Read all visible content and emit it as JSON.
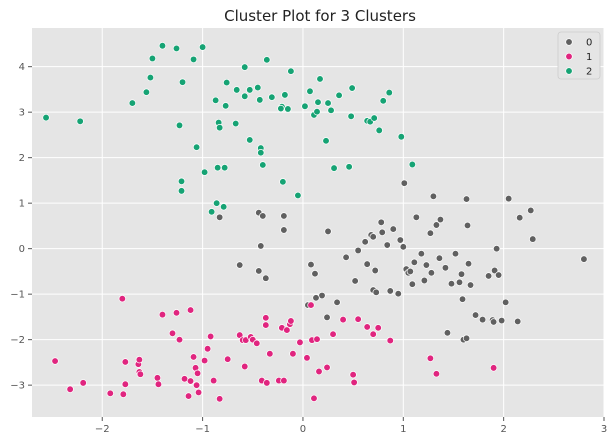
{
  "chart_data": {
    "type": "scatter",
    "title": "Cluster Plot for 3 Clusters",
    "xlabel": "",
    "ylabel": "",
    "xlim": [
      -2.7,
      3.0
    ],
    "ylim": [
      -3.7,
      4.85
    ],
    "xticks": [
      -2,
      -1,
      0,
      1,
      2,
      3
    ],
    "yticks": [
      -3,
      -2,
      -1,
      0,
      1,
      2,
      3,
      4
    ],
    "xtick_labels": [
      "−2",
      "−1",
      "0",
      "1",
      "2",
      "3"
    ],
    "ytick_labels": [
      "−3",
      "−2",
      "−1",
      "0",
      "1",
      "2",
      "3",
      "4"
    ],
    "grid": true,
    "legend": {
      "placement": "top-right"
    },
    "series": [
      {
        "name": "0",
        "color": "#606060",
        "points": [
          [
            -0.83,
            0.69
          ],
          [
            -0.44,
            0.79
          ],
          [
            -0.4,
            0.72
          ],
          [
            -0.19,
            0.72
          ],
          [
            -0.19,
            0.41
          ],
          [
            -0.42,
            0.06
          ],
          [
            -0.63,
            -0.36
          ],
          [
            -0.44,
            -0.49
          ],
          [
            -0.37,
            -0.65
          ],
          [
            0.08,
            -0.35
          ],
          [
            0.12,
            -0.55
          ],
          [
            0.25,
            0.38
          ],
          [
            0.19,
            -1.03
          ],
          [
            0.13,
            -1.08
          ],
          [
            0.05,
            -1.24
          ],
          [
            0.24,
            -1.51
          ],
          [
            0.34,
            -1.18
          ],
          [
            0.43,
            -0.19
          ],
          [
            0.52,
            -0.71
          ],
          [
            0.55,
            -0.04
          ],
          [
            0.62,
            0.15
          ],
          [
            0.64,
            -0.34
          ],
          [
            0.68,
            0.3
          ],
          [
            0.72,
            -0.48
          ],
          [
            0.78,
            0.58
          ],
          [
            0.7,
            0.26
          ],
          [
            0.7,
            -0.91
          ],
          [
            0.73,
            -0.96
          ],
          [
            0.79,
            0.36
          ],
          [
            0.84,
            0.08
          ],
          [
            0.87,
            -0.93
          ],
          [
            0.9,
            0.43
          ],
          [
            0.95,
            -0.99
          ],
          [
            0.97,
            0.19
          ],
          [
            1.0,
            0.04
          ],
          [
            1.01,
            1.44
          ],
          [
            1.03,
            -0.45
          ],
          [
            1.05,
            -0.53
          ],
          [
            1.07,
            -0.5
          ],
          [
            1.09,
            -0.78
          ],
          [
            1.11,
            -0.3
          ],
          [
            1.13,
            0.69
          ],
          [
            1.18,
            -0.11
          ],
          [
            1.21,
            -0.7
          ],
          [
            1.27,
            0.34
          ],
          [
            1.28,
            -0.53
          ],
          [
            1.3,
            1.15
          ],
          [
            1.33,
            0.52
          ],
          [
            1.36,
            -0.21
          ],
          [
            1.37,
            0.64
          ],
          [
            1.42,
            -0.42
          ],
          [
            1.44,
            -1.85
          ],
          [
            1.48,
            -0.77
          ],
          [
            1.52,
            -0.11
          ],
          [
            1.58,
            -0.56
          ],
          [
            1.59,
            -1.11
          ],
          [
            1.6,
            -2.0
          ],
          [
            1.63,
            -1.97
          ],
          [
            1.64,
            0.51
          ],
          [
            1.65,
            -0.33
          ],
          [
            1.67,
            -0.8
          ],
          [
            1.72,
            -1.46
          ],
          [
            1.79,
            -1.56
          ],
          [
            1.85,
            -0.6
          ],
          [
            1.89,
            -1.57
          ],
          [
            1.9,
            -1.61
          ],
          [
            1.91,
            -0.48
          ],
          [
            1.93,
            0.0
          ],
          [
            1.95,
            -0.58
          ],
          [
            1.98,
            -1.58
          ],
          [
            2.02,
            -1.18
          ],
          [
            2.05,
            1.1
          ],
          [
            2.14,
            -1.6
          ],
          [
            2.16,
            0.68
          ],
          [
            2.27,
            0.84
          ],
          [
            2.29,
            0.21
          ],
          [
            2.8,
            -0.23
          ],
          [
            1.63,
            1.09
          ],
          [
            1.23,
            -0.36
          ],
          [
            1.56,
            -0.74
          ]
        ]
      },
      {
        "name": "1",
        "color": "#e0257f",
        "points": [
          [
            -2.47,
            -2.47
          ],
          [
            -2.32,
            -3.09
          ],
          [
            -2.19,
            -2.95
          ],
          [
            -1.92,
            -3.18
          ],
          [
            -1.8,
            -1.1
          ],
          [
            -1.77,
            -2.98
          ],
          [
            -1.77,
            -2.49
          ],
          [
            -1.79,
            -3.2
          ],
          [
            -1.64,
            -2.54
          ],
          [
            -1.63,
            -2.71
          ],
          [
            -1.63,
            -2.44
          ],
          [
            -1.62,
            -2.76
          ],
          [
            -1.45,
            -2.84
          ],
          [
            -1.44,
            -2.98
          ],
          [
            -1.4,
            -1.45
          ],
          [
            -1.3,
            -1.86
          ],
          [
            -1.26,
            -1.41
          ],
          [
            -1.23,
            -2.0
          ],
          [
            -1.18,
            -2.86
          ],
          [
            -1.14,
            -3.24
          ],
          [
            -1.12,
            -2.91
          ],
          [
            -1.12,
            -1.35
          ],
          [
            -1.09,
            -2.38
          ],
          [
            -1.07,
            -2.62
          ],
          [
            -1.06,
            -3.0
          ],
          [
            -1.05,
            -2.74
          ],
          [
            -1.04,
            -3.16
          ],
          [
            -0.98,
            -2.46
          ],
          [
            -0.95,
            -2.2
          ],
          [
            -0.92,
            -1.93
          ],
          [
            -0.89,
            -2.9
          ],
          [
            -0.83,
            -3.3
          ],
          [
            -0.75,
            -2.43
          ],
          [
            -0.63,
            -1.9
          ],
          [
            -0.6,
            -2.01
          ],
          [
            -0.58,
            -2.59
          ],
          [
            -0.57,
            -2.01
          ],
          [
            -0.52,
            -1.94
          ],
          [
            -0.5,
            -2.0
          ],
          [
            -0.46,
            -2.08
          ],
          [
            -0.41,
            -2.9
          ],
          [
            -0.37,
            -1.68
          ],
          [
            -0.37,
            -1.52
          ],
          [
            -0.33,
            -2.31
          ],
          [
            -0.36,
            -2.95
          ],
          [
            -0.24,
            -2.9
          ],
          [
            -0.21,
            -1.74
          ],
          [
            -0.19,
            -2.9
          ],
          [
            -0.16,
            -1.79
          ],
          [
            -0.13,
            -1.66
          ],
          [
            -0.12,
            -1.59
          ],
          [
            -0.1,
            -2.31
          ],
          [
            -0.03,
            -2.06
          ],
          [
            0.04,
            -2.4
          ],
          [
            0.08,
            -1.24
          ],
          [
            0.09,
            -2.01
          ],
          [
            0.11,
            -3.29
          ],
          [
            0.14,
            -1.99
          ],
          [
            0.16,
            -2.7
          ],
          [
            0.24,
            -2.61
          ],
          [
            0.3,
            -1.88
          ],
          [
            0.4,
            -1.56
          ],
          [
            0.5,
            -2.77
          ],
          [
            0.51,
            -2.94
          ],
          [
            0.55,
            -1.55
          ],
          [
            0.64,
            -1.72
          ],
          [
            0.7,
            -1.88
          ],
          [
            0.75,
            -1.74
          ],
          [
            0.87,
            -2.02
          ],
          [
            1.27,
            -2.41
          ],
          [
            1.33,
            -2.75
          ],
          [
            1.9,
            -2.62
          ]
        ]
      },
      {
        "name": "2",
        "color": "#16a374",
        "points": [
          [
            -2.56,
            2.88
          ],
          [
            -2.22,
            2.8
          ],
          [
            -1.7,
            3.2
          ],
          [
            -1.56,
            3.44
          ],
          [
            -1.52,
            3.76
          ],
          [
            -1.5,
            4.18
          ],
          [
            -1.4,
            4.46
          ],
          [
            -1.26,
            4.4
          ],
          [
            -1.23,
            2.71
          ],
          [
            -1.21,
            1.48
          ],
          [
            -1.21,
            1.27
          ],
          [
            -1.2,
            3.66
          ],
          [
            -1.09,
            4.16
          ],
          [
            -1.06,
            2.23
          ],
          [
            -1.0,
            4.43
          ],
          [
            -0.98,
            1.68
          ],
          [
            -0.91,
            0.81
          ],
          [
            -0.86,
            1.0
          ],
          [
            -0.87,
            3.26
          ],
          [
            -0.85,
            1.78
          ],
          [
            -0.84,
            2.77
          ],
          [
            -0.83,
            2.66
          ],
          [
            -0.79,
            0.92
          ],
          [
            -0.78,
            1.78
          ],
          [
            -0.77,
            3.14
          ],
          [
            -0.76,
            3.65
          ],
          [
            -0.67,
            2.75
          ],
          [
            -0.66,
            3.49
          ],
          [
            -0.58,
            3.35
          ],
          [
            -0.58,
            3.99
          ],
          [
            -0.53,
            3.49
          ],
          [
            -0.53,
            2.39
          ],
          [
            -0.45,
            3.54
          ],
          [
            -0.43,
            3.27
          ],
          [
            -0.42,
            2.21
          ],
          [
            -0.42,
            2.11
          ],
          [
            -0.4,
            1.84
          ],
          [
            -0.36,
            4.15
          ],
          [
            -0.31,
            3.33
          ],
          [
            -0.21,
            3.12
          ],
          [
            -0.2,
            1.47
          ],
          [
            -0.18,
            3.38
          ],
          [
            -0.15,
            3.07
          ],
          [
            -0.12,
            3.9
          ],
          [
            -0.05,
            1.17
          ],
          [
            0.02,
            3.13
          ],
          [
            0.07,
            3.46
          ],
          [
            0.11,
            2.94
          ],
          [
            0.14,
            3.01
          ],
          [
            0.15,
            3.22
          ],
          [
            0.17,
            3.73
          ],
          [
            0.23,
            2.37
          ],
          [
            0.25,
            3.2
          ],
          [
            0.31,
            1.77
          ],
          [
            0.36,
            3.37
          ],
          [
            0.46,
            1.8
          ],
          [
            0.48,
            2.91
          ],
          [
            0.49,
            3.53
          ],
          [
            0.64,
            2.81
          ],
          [
            0.67,
            2.79
          ],
          [
            0.71,
            2.87
          ],
          [
            0.76,
            2.6
          ],
          [
            0.8,
            3.25
          ],
          [
            0.86,
            3.43
          ],
          [
            0.98,
            2.46
          ],
          [
            1.09,
            1.85
          ],
          [
            -0.22,
            3.08
          ],
          [
            0.28,
            3.04
          ]
        ]
      }
    ]
  }
}
